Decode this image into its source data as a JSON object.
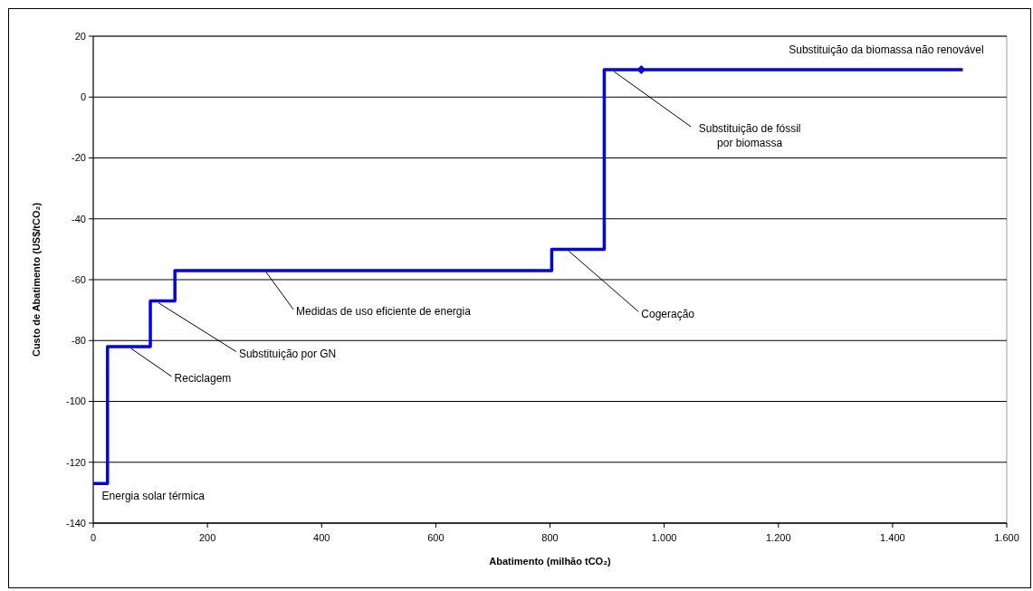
{
  "chart_data": {
    "type": "step",
    "xlabel": "Abatimento (milhão tCO₂)",
    "ylabel": "Custo de Abatimento (US$/tCO₂)",
    "xlim": [
      0,
      1600
    ],
    "xticks": [
      0,
      200,
      400,
      600,
      800,
      {
        "value": 1000,
        "label": "1.000"
      },
      {
        "value": 1200,
        "label": "1.200"
      },
      {
        "value": 1400,
        "label": "1.400"
      },
      {
        "value": 1600,
        "label": "1.600"
      }
    ],
    "ylim": [
      -140,
      20
    ],
    "yticks": [
      -140,
      -120,
      -100,
      -80,
      -60,
      -40,
      -20,
      0,
      20
    ],
    "grid": "y",
    "series": [
      {
        "color": "#0000ff",
        "marker": "none",
        "line_style": "solid",
        "x": [
          0,
          25,
          100,
          143,
          803,
          895,
          1523
        ],
        "values": [
          -127,
          -82,
          -67,
          -57,
          -50,
          9,
          9
        ]
      },
      {
        "type": "scatter",
        "color": "#0000ff",
        "marker": "diamond",
        "x": [
          960
        ],
        "values": [
          9
        ]
      }
    ],
    "annotations": [
      {
        "text": "Energia solar térmica",
        "x": 12,
        "y": -127
      },
      {
        "text": "Reciclagem",
        "x": 66,
        "y": -82
      },
      {
        "text": "Substituição por GN",
        "x": 114,
        "y": -67
      },
      {
        "text": "Medidas de uso eficiente de energia",
        "x": 303,
        "y": -57
      },
      {
        "text": "Cogeração",
        "x": 833,
        "y": -50
      },
      {
        "text": "Substituição de fóssil\npor biomassa",
        "x": 912,
        "y": 9
      },
      {
        "text": "Substituição da biomassa não renovável",
        "x": 1286,
        "y": 9
      }
    ]
  }
}
